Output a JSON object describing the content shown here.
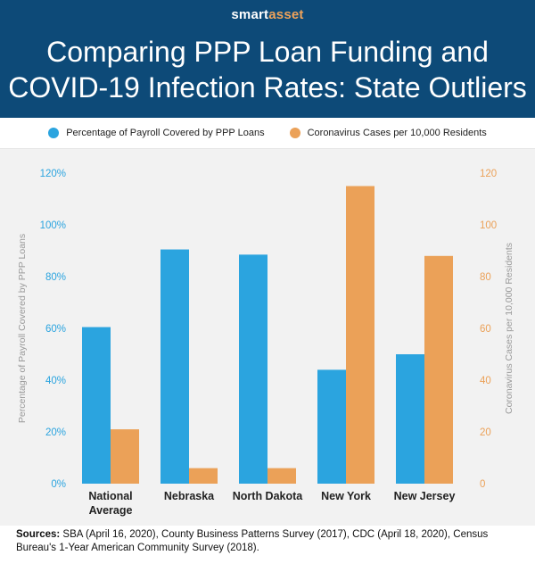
{
  "header": {
    "brand_part1": "smart",
    "brand_part2": "asset",
    "title_line1": "Comparing PPP Loan Funding and",
    "title_line2": "COVID-19 Infection Rates: State Outliers"
  },
  "legend": {
    "items": [
      {
        "label": "Percentage of Payroll Covered by PPP Loans",
        "color": "#2ba4df"
      },
      {
        "label": "Coronavirus Cases per 10,000 Residents",
        "color": "#eba158"
      }
    ]
  },
  "sources": {
    "label": "Sources:",
    "text": "SBA (April 16, 2020), County Business Patterns Survey (2017), CDC (April 18, 2020), Census Bureau's 1-Year American Community Survey (2018)."
  },
  "chart_data": {
    "type": "bar",
    "categories": [
      [
        "National",
        "Average"
      ],
      [
        "Nebraska"
      ],
      [
        "North Dakota"
      ],
      [
        "New York"
      ],
      [
        "New Jersey"
      ]
    ],
    "series": [
      {
        "name": "Percentage of Payroll Covered by PPP Loans",
        "axis": "left",
        "values": [
          60.5,
          90.5,
          88.5,
          44,
          50
        ],
        "color": "#2ba4df"
      },
      {
        "name": "Coronavirus Cases per 10,000 Residents",
        "axis": "right",
        "values": [
          21,
          6,
          6,
          115,
          88
        ],
        "color": "#eba158"
      }
    ],
    "ylabel_left": "Percentage of Payroll Covered by PPP Loans",
    "ylabel_right": "Coronavirus Cases per 10,000 Residents",
    "ylim_left": [
      0,
      120
    ],
    "ylim_right": [
      0,
      120
    ],
    "yticks_left": [
      "0%",
      "20%",
      "40%",
      "60%",
      "80%",
      "100%",
      "120%"
    ],
    "yticks_right": [
      "0",
      "20",
      "40",
      "60",
      "80",
      "100",
      "120"
    ],
    "left_tick_color": "#2ba4df",
    "right_tick_color": "#eba158",
    "grid": false
  }
}
